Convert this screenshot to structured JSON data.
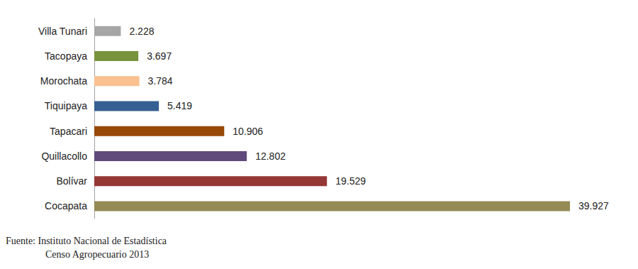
{
  "chart_data": {
    "type": "bar",
    "orientation": "horizontal",
    "categories": [
      "Villa Tunari",
      "Tacopaya",
      "Morochata",
      "Tiquipaya",
      "Tapacari",
      "Quillacollo",
      "Bolívar",
      "Cocapata"
    ],
    "values": [
      2228,
      3697,
      3784,
      5419,
      10906,
      12802,
      19529,
      39927
    ],
    "value_labels": [
      "2.228",
      "3.697",
      "3.784",
      "5.419",
      "10.906",
      "12.802",
      "19.529",
      "39.927"
    ],
    "colors": [
      "#a6a6a6",
      "#77933c",
      "#fac090",
      "#366092",
      "#984807",
      "#604a7b",
      "#953735",
      "#948a54"
    ],
    "data_labels": true,
    "tick_labels": "y",
    "grid": false,
    "annotations": [
      "Fuente: Instituto Nacional de Estadística",
      "Censo Agropecuario 2013"
    ]
  }
}
